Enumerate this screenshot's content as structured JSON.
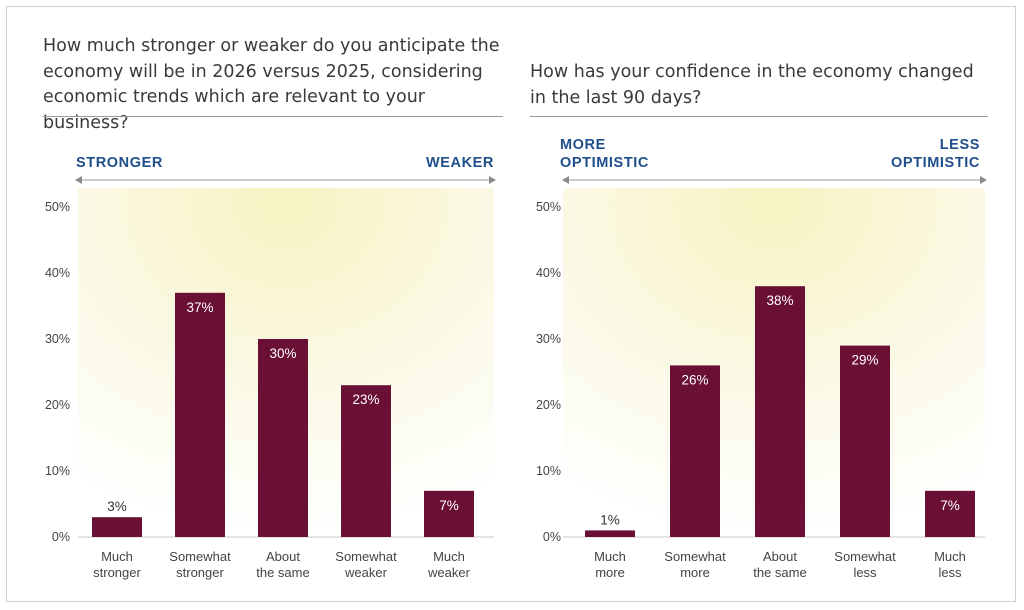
{
  "panels": [
    {
      "title": "How much stronger or weaker do you anticipate the\neconomy will be in 2026 versus 2025, considering\neconomic trends which are relevant to your business?",
      "direction_left": "STRONGER",
      "direction_right": "WEAKER"
    },
    {
      "title": "How has your confidence in the economy changed\nin the last 90 days?",
      "direction_left": "MORE\nOPTIMISTIC",
      "direction_right": "LESS\nOPTIMISTIC"
    }
  ],
  "colors": {
    "bar": "#6b1035",
    "direction_text": "#1f4e8c",
    "gradient_light": "#f7f3c2"
  },
  "chart_data": [
    {
      "type": "bar",
      "title": "How much stronger or weaker do you anticipate the economy will be in 2026 versus 2025, considering economic trends which are relevant to your business?",
      "categories": [
        "Much\nstronger",
        "Somewhat\nstronger",
        "About\nthe same",
        "Somewhat\nweaker",
        "Much\nweaker"
      ],
      "values": [
        3,
        37,
        30,
        23,
        7
      ],
      "data_labels": [
        "3%",
        "37%",
        "30%",
        "23%",
        "7%"
      ],
      "yticks": [
        "0%",
        "10%",
        "20%",
        "30%",
        "40%",
        "50%"
      ],
      "ylim": [
        0,
        50
      ],
      "grid": false,
      "legend": "none"
    },
    {
      "type": "bar",
      "title": "How has your confidence in the economy changed in the last 90 days?",
      "categories": [
        "Much\nmore",
        "Somewhat\nmore",
        "About\nthe same",
        "Somewhat\nless",
        "Much\nless"
      ],
      "values": [
        1,
        26,
        38,
        29,
        7
      ],
      "data_labels": [
        "1%",
        "26%",
        "38%",
        "29%",
        "7%"
      ],
      "yticks": [
        "0%",
        "10%",
        "20%",
        "30%",
        "40%",
        "50%"
      ],
      "ylim": [
        0,
        50
      ],
      "grid": false,
      "legend": "none"
    }
  ]
}
